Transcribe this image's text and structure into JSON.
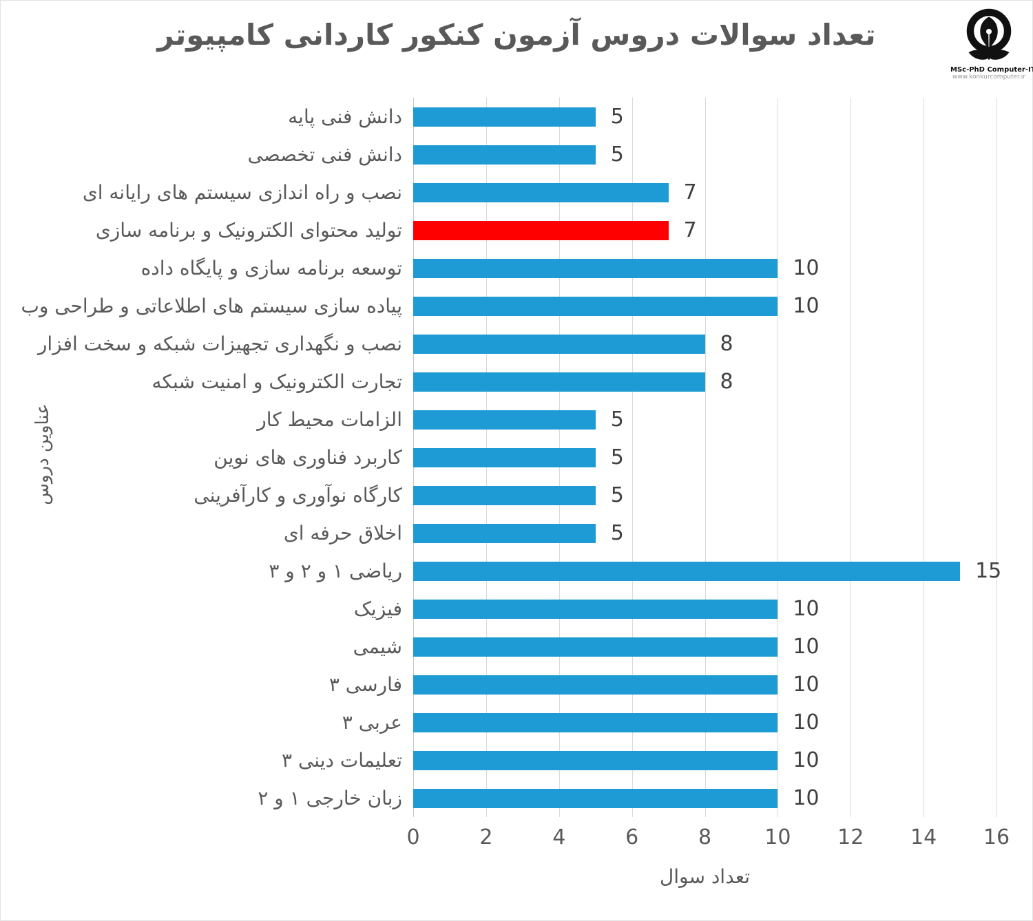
{
  "title": "تعداد سوالات دروس آزمون کنکور کاردانی کامپیوتر",
  "logo": {
    "line1": "MSc-PhD Computer-IT",
    "line2": "www.konkurcomputer.ir"
  },
  "colors": {
    "bar_default": "#1E9BD4",
    "bar_highlight": "#FF0000",
    "gridline": "#D9D9D9",
    "axis_line": "#C6C6C6",
    "title_text": "#595959",
    "axis_text": "#595959",
    "data_label_text": "#404040"
  },
  "chart_data": {
    "type": "bar",
    "orientation": "horizontal",
    "title": "تعداد سوالات دروس آزمون کنکور کاردانی کامپیوتر",
    "xlabel": "تعداد سوال",
    "ylabel": "عناوین دروس",
    "xlim": [
      0,
      16
    ],
    "xticks": [
      0,
      2,
      4,
      6,
      8,
      10,
      12,
      14,
      16
    ],
    "grid": true,
    "legend": "none",
    "highlight_index": 3,
    "categories": [
      "دانش فنی پایه",
      "دانش فنی تخصصی",
      "نصب و راه اندازی سیستم های رایانه ای",
      "تولید محتوای الکترونیک و برنامه سازی",
      "توسعه برنامه سازی و پایگاه داده",
      "پیاده سازی سیستم های اطلاعاتی و طراحی وب",
      "نصب و نگهداری تجهیزات شبکه و سخت افزار",
      "تجارت الکترونیک و امنیت شبکه",
      "الزامات محیط کار",
      "کاربرد فناوری های نوین",
      "کارگاه نوآوری و کارآفرینی",
      "اخلاق حرفه ای",
      "ریاضی ۱ و ۲ و ۳",
      "فیزیک",
      "شیمی",
      "فارسی ۳",
      "عربی ۳",
      "تعلیمات دینی ۳",
      "زبان خارجی ۱ و ۲"
    ],
    "values": [
      5,
      5,
      7,
      7,
      10,
      10,
      8,
      8,
      5,
      5,
      5,
      5,
      15,
      10,
      10,
      10,
      10,
      10,
      10
    ]
  }
}
